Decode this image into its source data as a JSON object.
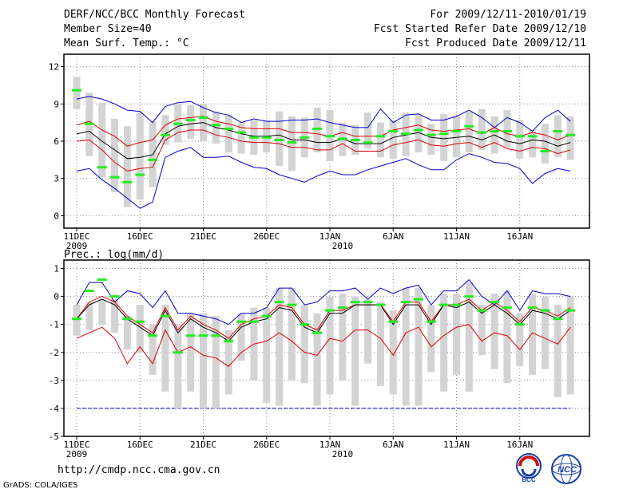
{
  "header": {
    "title": "DERF/NCC/BCC Monthly Forecast",
    "member": "Member Size=40",
    "variable": "Mean Surf. Temp.: °C",
    "period": "For 2009/12/11-2010/01/19",
    "started": "Fcst Started Refer Date 2009/12/10",
    "produced": "Fcst Produced Date 2009/12/11"
  },
  "footer": {
    "url": "http://cmdp.ncc.cma.gov.cn",
    "grads": "GrADS: COLA/IGES",
    "logo_bcc": "BCC",
    "logo_ncc": "NCC"
  },
  "colors": {
    "frame": "#000000",
    "grid": "#888888",
    "box": "#d3d3d3",
    "mean": "#000000",
    "spread": "#dd0000",
    "envelope": "#0000cc",
    "observed": "#22ee22",
    "floor": "#0000cc"
  },
  "chart_data": [
    {
      "type": "line",
      "title": "Mean Surf. Temp.: °C",
      "xlabel": "",
      "ylabel": "°C",
      "x_start_day": 1,
      "days": 40,
      "x_tick_days": [
        1,
        6,
        11,
        16,
        21,
        26,
        31,
        36
      ],
      "x_tick_labels": [
        "11DEC",
        "16DEC",
        "21DEC",
        "26DEC",
        "1JAN",
        "6JAN",
        "11JAN",
        "16JAN"
      ],
      "x_year_labels": [
        {
          "day": 1,
          "label": "2009"
        },
        {
          "day": 22,
          "label": "2010"
        }
      ],
      "ylim": [
        -1,
        13
      ],
      "y_ticks": [
        0,
        3,
        6,
        9,
        12
      ],
      "series": [
        {
          "name": "mean",
          "values": [
            6.6,
            6.8,
            6.0,
            5.3,
            4.6,
            4.7,
            4.9,
            6.6,
            7.2,
            7.4,
            7.5,
            7.1,
            6.9,
            6.6,
            6.4,
            6.4,
            6.5,
            6.1,
            6.1,
            5.9,
            5.9,
            6.2,
            5.8,
            5.8,
            5.8,
            6.3,
            6.5,
            6.7,
            6.3,
            6.2,
            6.3,
            6.4,
            6.1,
            6.5,
            6.0,
            5.8,
            6.1,
            6.0,
            5.6,
            5.9
          ]
        },
        {
          "name": "upper",
          "values": [
            7.3,
            7.6,
            6.9,
            6.4,
            5.6,
            5.9,
            6.1,
            7.3,
            7.8,
            7.9,
            8.0,
            7.6,
            7.4,
            7.1,
            7.0,
            7.0,
            7.0,
            6.7,
            6.7,
            6.6,
            6.4,
            6.7,
            6.4,
            6.4,
            6.4,
            6.9,
            7.1,
            7.3,
            6.9,
            6.8,
            6.9,
            7.0,
            6.6,
            7.1,
            6.6,
            6.4,
            6.7,
            6.5,
            6.1,
            6.5
          ]
        },
        {
          "name": "lower",
          "values": [
            6.0,
            6.1,
            5.3,
            4.3,
            3.6,
            3.8,
            3.9,
            6.1,
            6.7,
            6.9,
            6.9,
            6.5,
            6.3,
            6.0,
            5.9,
            5.9,
            5.8,
            5.5,
            5.5,
            5.3,
            5.3,
            5.8,
            5.2,
            5.2,
            5.2,
            5.7,
            5.9,
            6.1,
            5.7,
            5.6,
            5.8,
            5.9,
            5.5,
            5.9,
            5.4,
            5.2,
            5.5,
            5.4,
            5.0,
            5.3
          ]
        },
        {
          "name": "max",
          "values": [
            9.4,
            9.6,
            9.4,
            9.0,
            8.5,
            8.4,
            7.5,
            8.8,
            9.1,
            9.2,
            8.7,
            8.3,
            8.1,
            7.5,
            7.8,
            7.6,
            7.6,
            7.7,
            7.7,
            7.8,
            7.5,
            7.3,
            7.1,
            7.1,
            8.6,
            7.5,
            8.1,
            8.2,
            7.7,
            7.7,
            8.0,
            8.5,
            7.9,
            7.1,
            7.9,
            7.5,
            6.8,
            7.9,
            8.5,
            7.6
          ]
        },
        {
          "name": "min",
          "values": [
            3.6,
            3.8,
            2.9,
            2.2,
            1.4,
            0.6,
            1.1,
            4.7,
            5.2,
            5.5,
            4.7,
            4.7,
            4.8,
            4.3,
            3.9,
            3.8,
            3.3,
            3.0,
            2.7,
            3.2,
            3.6,
            3.3,
            3.3,
            3.7,
            4.0,
            4.3,
            4.6,
            4.1,
            3.7,
            3.7,
            4.5,
            5.0,
            4.7,
            4.3,
            4.2,
            3.8,
            2.6,
            3.4,
            3.8,
            3.6
          ]
        },
        {
          "name": "observed",
          "values": [
            10.1,
            7.4,
            3.9,
            3.1,
            2.7,
            3.3,
            4.5,
            6.5,
            7.4,
            7.7,
            7.9,
            7.3,
            7.0,
            6.7,
            6.3,
            6.3,
            6.1,
            5.9,
            6.3,
            7.0,
            6.4,
            6.2,
            6.1,
            5.9,
            6.4,
            6.8,
            6.6,
            6.9,
            6.5,
            6.6,
            6.8,
            7.2,
            6.7,
            6.8,
            6.8,
            6.4,
            6.4,
            5.2,
            6.8,
            6.5
          ]
        },
        {
          "name": "box_high",
          "values": [
            11.2,
            9.9,
            9.1,
            7.8,
            7.2,
            8.3,
            7.6,
            8.1,
            9.0,
            8.9,
            9.0,
            8.4,
            8.1,
            7.5,
            7.7,
            7.7,
            8.4,
            8.0,
            7.9,
            8.7,
            8.5,
            7.5,
            7.3,
            8.3,
            7.5,
            7.7,
            8.3,
            8.2,
            7.4,
            8.2,
            8.0,
            8.4,
            8.6,
            8.0,
            8.5,
            7.7,
            6.9,
            7.4,
            8.1,
            8.0
          ]
        },
        {
          "name": "box_low",
          "values": [
            8.6,
            4.8,
            3.1,
            1.9,
            0.7,
            1.3,
            2.3,
            5.7,
            5.9,
            6.2,
            6.0,
            5.8,
            5.1,
            5.0,
            4.9,
            5.1,
            4.0,
            3.6,
            4.7,
            5.1,
            4.4,
            4.8,
            4.9,
            5.4,
            4.7,
            4.6,
            4.8,
            5.1,
            4.9,
            4.4,
            4.7,
            5.1,
            5.3,
            5.0,
            5.5,
            4.6,
            4.7,
            4.2,
            4.7,
            4.5
          ]
        }
      ]
    },
    {
      "type": "line",
      "title": "Prec.: log(mm/d)",
      "xlabel": "",
      "ylabel": "log(mm/d)",
      "x_start_day": 1,
      "days": 40,
      "x_tick_days": [
        1,
        6,
        11,
        16,
        21,
        26,
        31,
        36
      ],
      "x_tick_labels": [
        "11DEC",
        "16DEC",
        "21DEC",
        "26DEC",
        "1JAN",
        "6JAN",
        "11JAN",
        "16JAN"
      ],
      "x_year_labels": [
        {
          "day": 1,
          "label": "2009"
        },
        {
          "day": 22,
          "label": "2010"
        }
      ],
      "ylim": [
        -5,
        1.3
      ],
      "y_ticks": [
        -5,
        -4,
        -3,
        -2,
        -1,
        0,
        1
      ],
      "series": [
        {
          "name": "mean",
          "values": [
            -0.8,
            -0.3,
            -0.1,
            -0.3,
            -0.8,
            -1.1,
            -1.4,
            -0.5,
            -1.3,
            -0.8,
            -1.1,
            -1.3,
            -1.6,
            -1.1,
            -0.9,
            -0.8,
            -0.4,
            -0.5,
            -1.1,
            -1.3,
            -0.6,
            -0.6,
            -0.3,
            -0.3,
            -0.3,
            -1.0,
            -0.3,
            -0.3,
            -1.0,
            -0.3,
            -0.4,
            -0.2,
            -0.6,
            -0.3,
            -0.6,
            -1.0,
            -0.5,
            -0.6,
            -0.8,
            -0.5
          ]
        },
        {
          "name": "upper",
          "values": [
            -0.8,
            -0.2,
            0.0,
            -0.2,
            -0.7,
            -1.0,
            -1.3,
            -0.4,
            -1.2,
            -0.7,
            -1.0,
            -1.2,
            -1.5,
            -1.0,
            -0.8,
            -0.7,
            -0.3,
            -0.4,
            -1.0,
            -1.2,
            -0.5,
            -0.5,
            -0.3,
            -0.3,
            -0.3,
            -0.9,
            -0.2,
            -0.2,
            -0.9,
            -0.3,
            -0.3,
            -0.1,
            -0.5,
            -0.2,
            -0.5,
            -0.9,
            -0.4,
            -0.5,
            -0.7,
            -0.4
          ]
        },
        {
          "name": "lower",
          "values": [
            -1.5,
            -1.3,
            -1.1,
            -1.5,
            -2.4,
            -1.8,
            -2.4,
            -1.2,
            -2.0,
            -1.8,
            -2.1,
            -2.2,
            -2.5,
            -2.0,
            -1.7,
            -1.6,
            -1.3,
            -1.6,
            -2.0,
            -2.1,
            -1.5,
            -1.6,
            -1.2,
            -1.2,
            -1.5,
            -2.1,
            -1.3,
            -1.1,
            -1.8,
            -1.4,
            -1.1,
            -1.0,
            -1.6,
            -1.3,
            -1.4,
            -1.9,
            -1.3,
            -1.5,
            -1.7,
            -1.1
          ]
        },
        {
          "name": "max",
          "values": [
            -0.3,
            0.5,
            0.5,
            -0.2,
            0.2,
            0.1,
            -0.4,
            0.2,
            -0.6,
            -0.6,
            -0.7,
            -0.8,
            -1.0,
            -0.6,
            -0.6,
            -0.4,
            0.3,
            0.3,
            -0.3,
            -0.2,
            0.2,
            0.2,
            0.3,
            -0.1,
            0.3,
            0.1,
            0.3,
            0.4,
            -0.3,
            0.2,
            0.2,
            0.6,
            0.0,
            -0.3,
            0.2,
            -0.5,
            0.2,
            0.1,
            0.1,
            0.0
          ]
        },
        {
          "name": "min",
          "values": [
            -4,
            -4,
            -4,
            -4,
            -4,
            -4,
            -4,
            -4,
            -4,
            -4,
            -4,
            -4,
            -4,
            -4,
            -4,
            -4,
            -4,
            -4,
            -4,
            -4,
            -4,
            -4,
            -4,
            -4,
            -4,
            -4,
            -4,
            -4,
            -4,
            -4,
            -4,
            -4,
            -4,
            -4,
            -4,
            -4,
            -4,
            -4,
            -4,
            -4
          ]
        },
        {
          "name": "observed",
          "values": [
            -0.8,
            0.2,
            0.6,
            0.0,
            -0.8,
            -0.9,
            -1.4,
            -0.7,
            -2.0,
            -1.4,
            -1.4,
            -1.4,
            -1.6,
            -0.9,
            -0.9,
            -0.7,
            -0.2,
            -0.3,
            -1.0,
            -1.3,
            -0.5,
            -0.4,
            -0.2,
            -0.2,
            -0.3,
            -0.9,
            -0.2,
            -0.1,
            -0.9,
            -0.3,
            -0.3,
            0.0,
            -0.5,
            -0.2,
            -0.4,
            -1.0,
            -0.4,
            -0.5,
            -0.8,
            -0.5
          ]
        },
        {
          "name": "box_high",
          "values": [
            -0.3,
            -0.2,
            -0.1,
            -0.1,
            -0.7,
            -0.3,
            -1.0,
            -0.3,
            -1.0,
            -0.6,
            -0.6,
            -0.7,
            -1.2,
            -0.6,
            -0.4,
            -0.4,
            0.3,
            0.3,
            -0.3,
            -0.6,
            0.0,
            0.1,
            0.0,
            -0.1,
            -0.2,
            -0.5,
            0.3,
            0.3,
            -0.3,
            0.1,
            0.1,
            0.5,
            -0.3,
            0.1,
            0.2,
            -0.6,
            0.1,
            0.0,
            -0.3,
            0.0
          ]
        },
        {
          "name": "box_low",
          "values": [
            -1.4,
            -1.2,
            -1.0,
            -1.3,
            -1.9,
            -2.0,
            -2.8,
            -3.4,
            -4.0,
            -3.4,
            -4.0,
            -4.0,
            -3.5,
            -2.3,
            -3.0,
            -3.8,
            -3.9,
            -3.0,
            -3.1,
            -3.9,
            -3.5,
            -3.0,
            -3.9,
            -2.4,
            -3.2,
            -3.5,
            -3.9,
            -3.9,
            -2.7,
            -3.4,
            -2.8,
            -3.4,
            -2.1,
            -2.6,
            -3.1,
            -2.5,
            -2.8,
            -2.6,
            -3.6,
            -3.5
          ]
        }
      ]
    }
  ]
}
